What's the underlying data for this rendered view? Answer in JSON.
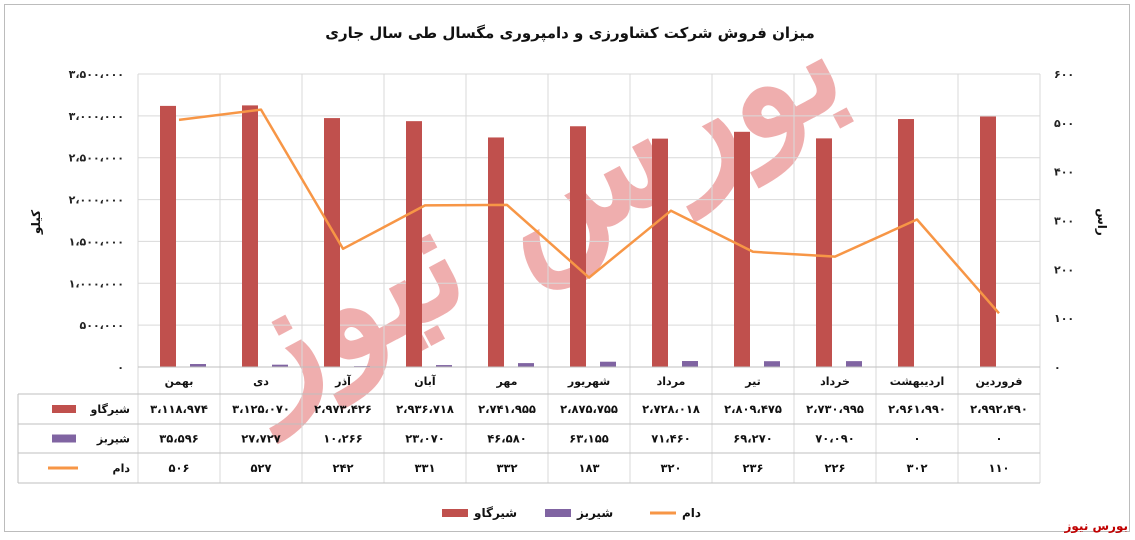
{
  "source_label": "بورس نیوز",
  "chart_data": {
    "type": "bar",
    "title": "میزان فروش شرکت کشاورزی و دامپروری مگسال طی سال جاری",
    "ylabel": "کیلو",
    "y2label": "راس",
    "ylim": [
      0,
      3500000
    ],
    "y2lim": [
      0,
      600
    ],
    "y_ticks": [
      "۰",
      "۵۰۰،۰۰۰",
      "۱،۰۰۰،۰۰۰",
      "۱،۵۰۰،۰۰۰",
      "۲،۰۰۰،۰۰۰",
      "۲،۵۰۰،۰۰۰",
      "۳،۰۰۰،۰۰۰",
      "۳،۵۰۰،۰۰۰"
    ],
    "y2_ticks": [
      "۰",
      "۱۰۰",
      "۲۰۰",
      "۳۰۰",
      "۴۰۰",
      "۵۰۰",
      "۶۰۰"
    ],
    "grid": true,
    "legend": "bottom",
    "categories": [
      "فروردین",
      "اردیبهشت",
      "خرداد",
      "تیر",
      "مرداد",
      "شهریور",
      "مهر",
      "آبان",
      "آذر",
      "دی",
      "بهمن"
    ],
    "series": [
      {
        "name": "شیرگاو",
        "type": "bar",
        "axis": "left",
        "color": "#c0504d",
        "values": [
          2992490,
          2961990,
          2730995,
          2809475,
          2728018,
          2875755,
          2741955,
          2936718,
          2973426,
          3125070,
          3118974
        ],
        "labels": [
          "۲،۹۹۲،۴۹۰",
          "۲،۹۶۱،۹۹۰",
          "۲،۷۳۰،۹۹۵",
          "۲،۸۰۹،۴۷۵",
          "۲،۷۲۸،۰۱۸",
          "۲،۸۷۵،۷۵۵",
          "۲،۷۴۱،۹۵۵",
          "۲،۹۳۶،۷۱۸",
          "۲،۹۷۳،۴۲۶",
          "۳،۱۲۵،۰۷۰",
          "۳،۱۱۸،۹۷۴"
        ]
      },
      {
        "name": "شیربز",
        "type": "bar",
        "axis": "left",
        "color": "#8064a2",
        "values": [
          0,
          0,
          70090,
          69270,
          71460,
          63155,
          46580,
          23070,
          10266,
          27727,
          35596
        ],
        "labels": [
          "۰",
          "۰",
          "۷۰،۰۹۰",
          "۶۹،۲۷۰",
          "۷۱،۴۶۰",
          "۶۳،۱۵۵",
          "۴۶،۵۸۰",
          "۲۳،۰۷۰",
          "۱۰،۲۶۶",
          "۲۷،۷۲۷",
          "۳۵،۵۹۶"
        ]
      },
      {
        "name": "دام",
        "type": "line",
        "axis": "right",
        "color": "#f79646",
        "values": [
          110,
          302,
          226,
          236,
          320,
          183,
          332,
          331,
          242,
          527,
          506
        ],
        "labels": [
          "۱۱۰",
          "۳۰۲",
          "۲۲۶",
          "۲۳۶",
          "۳۲۰",
          "۱۸۳",
          "۳۳۲",
          "۳۳۱",
          "۲۴۲",
          "۵۲۷",
          "۵۰۶"
        ]
      }
    ],
    "legend_order": [
      "دام",
      "شیربز",
      "شیرگاو"
    ],
    "watermark": "بورس نیوز"
  }
}
